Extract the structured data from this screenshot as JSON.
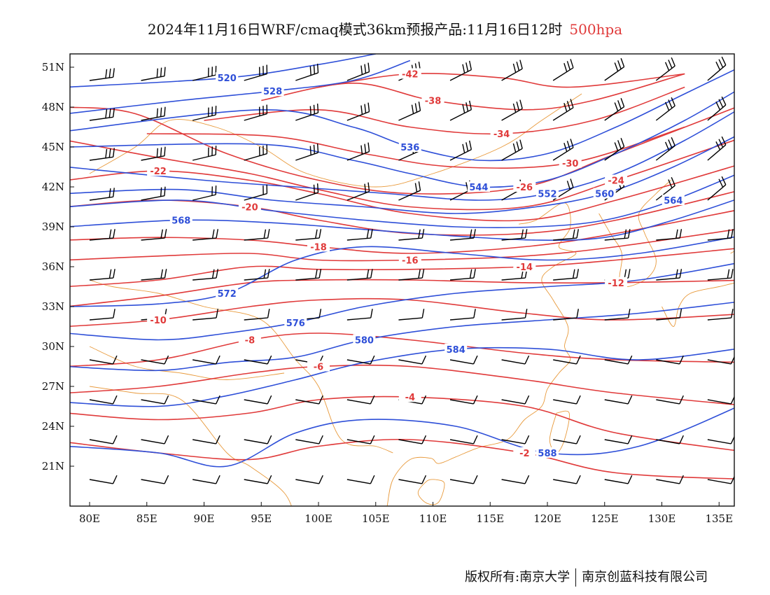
{
  "title": {
    "main": "2024年11月16日WRF/cmaq模式36km预报产品:11月16日12时",
    "level": "500hpa",
    "level_color": "#e03a3a"
  },
  "footer": {
    "owner": "版权所有:南京大学",
    "company": "南京创蓝科技有限公司"
  },
  "colors": {
    "height_contour": "#2e4fd8",
    "temp_contour": "#e03a3a",
    "coastline": "#e89a3c",
    "wind_barb": "#000000"
  },
  "axes": {
    "lat_labels": [
      "51N",
      "48N",
      "45N",
      "42N",
      "39N",
      "36N",
      "33N",
      "30N",
      "27N",
      "24N",
      "21N"
    ],
    "lon_labels": [
      "80E",
      "85E",
      "90E",
      "95E",
      "100E",
      "105E",
      "110E",
      "115E",
      "120E",
      "125E",
      "130E",
      "135E"
    ]
  },
  "contours": {
    "height": [
      {
        "label": "520",
        "lat": [
          49.5,
          50.2,
          51.2,
          52.0
        ],
        "lon": [
          78,
          92,
          100,
          105
        ]
      },
      {
        "label": "528",
        "lat": [
          47.5,
          48.5,
          49.2,
          50.0,
          51.5
        ],
        "lon": [
          78,
          88,
          96,
          103,
          108
        ]
      },
      {
        "label": "536",
        "lat": [
          46.2,
          47.8,
          46.5,
          45.0,
          44.0,
          44.5,
          46.5,
          49.0,
          51.5
        ],
        "lon": [
          78,
          95,
          103,
          108,
          114,
          120,
          126,
          132,
          138
        ]
      },
      {
        "label": "544",
        "lat": [
          45.0,
          45.2,
          44.0,
          43.0,
          42.0,
          42.5,
          44.5,
          47.0,
          50.0
        ],
        "lon": [
          78,
          95,
          103,
          108,
          114,
          120,
          126,
          132,
          138
        ]
      },
      {
        "label": "552",
        "lat": [
          43.5,
          42.5,
          42.0,
          41.5,
          41.0,
          41.5,
          43.0,
          45.5,
          48.5
        ],
        "lon": [
          78,
          90,
          98,
          106,
          114,
          120,
          126,
          132,
          138
        ]
      },
      {
        "label": "560",
        "lat": [
          41.5,
          41.8,
          41.0,
          40.5,
          40.0,
          40.5,
          41.5,
          43.5,
          46.5
        ],
        "lon": [
          78,
          88,
          96,
          104,
          112,
          119,
          125,
          131,
          138
        ]
      },
      {
        "label": "564",
        "lat": [
          40.5,
          41.0,
          40.2,
          39.5,
          39.0,
          39.0,
          39.5,
          41.0,
          43.5
        ],
        "lon": [
          78,
          88,
          96,
          104,
          112,
          119,
          125,
          131,
          138
        ]
      },
      {
        "label": "568",
        "lat": [
          39.0,
          39.5,
          39.3,
          38.8,
          38.3,
          38.0,
          38.2,
          39.5,
          41.5
        ],
        "lon": [
          78,
          88,
          96,
          104,
          112,
          119,
          125,
          131,
          138
        ]
      },
      {
        "label": "572",
        "lat": [
          33.0,
          33.2,
          34.0,
          36.5,
          37.5,
          37.0,
          36.5,
          37.0,
          38.5
        ],
        "lon": [
          78,
          86,
          92,
          98,
          104,
          112,
          120,
          128,
          138
        ]
      },
      {
        "label": "576",
        "lat": [
          31.0,
          30.5,
          31.0,
          31.8,
          33.0,
          34.0,
          34.5,
          35.0,
          36.5
        ],
        "lon": [
          78,
          86,
          92,
          98,
          104,
          112,
          120,
          128,
          138
        ]
      },
      {
        "label": "580",
        "lat": [
          28.5,
          28.2,
          28.8,
          29.2,
          30.5,
          31.5,
          32.0,
          32.5,
          33.5
        ],
        "lon": [
          78,
          86,
          92,
          98,
          104,
          112,
          120,
          128,
          138
        ]
      },
      {
        "label": "584",
        "lat": [
          25.8,
          25.5,
          26.3,
          27.5,
          28.8,
          29.8,
          29.8,
          29.0,
          30.0
        ],
        "lon": [
          78,
          86,
          92,
          98,
          104,
          112,
          120,
          128,
          138
        ]
      },
      {
        "label": "588",
        "lat": [
          22.5,
          22.0,
          21.0,
          23.5,
          24.5,
          24.0,
          22.0,
          22.5,
          26.0
        ],
        "lon": [
          78,
          86,
          92,
          98,
          104,
          112,
          120,
          128,
          138
        ]
      }
    ],
    "temp": [
      {
        "label": "-42",
        "lat": [
          49.5,
          50.5,
          50.2,
          49.5,
          50.5
        ],
        "lon": [
          100,
          108,
          116,
          122,
          132
        ]
      },
      {
        "label": "-38",
        "lat": [
          48.5,
          49.8,
          48.5,
          47.8,
          48.5,
          50.5
        ],
        "lon": [
          95,
          103,
          110,
          118,
          124,
          132
        ]
      },
      {
        "label": "-34",
        "lat": [
          47.0,
          47.8,
          46.5,
          46.0,
          47.0,
          49.5
        ],
        "lon": [
          90,
          100,
          108,
          116,
          124,
          132
        ]
      },
      {
        "label": "-30",
        "lat": [
          46.0,
          45.8,
          44.5,
          43.5,
          43.8,
          46.5
        ],
        "lon": [
          85,
          96,
          104,
          112,
          122,
          132
        ]
      },
      {
        "label": "-26",
        "lat": [
          48.0,
          47.5,
          44.5,
          42.5,
          41.5,
          42.0,
          44.5,
          48.5
        ],
        "lon": [
          78,
          84,
          92,
          100,
          108,
          118,
          126,
          138
        ]
      },
      {
        "label": "-24",
        "lat": [
          45.5,
          44.2,
          43.0,
          41.8,
          40.5,
          40.5,
          42.5,
          46.0
        ],
        "lon": [
          78,
          86,
          94,
          100,
          108,
          118,
          126,
          138
        ]
      },
      {
        "label": "-22",
        "lat": [
          42.5,
          43.2,
          42.5,
          41.5,
          40.0,
          39.5,
          41.0,
          44.0
        ],
        "lon": [
          78,
          86,
          94,
          100,
          108,
          118,
          126,
          138
        ]
      },
      {
        "label": "-20",
        "lat": [
          40.5,
          41.0,
          40.5,
          39.5,
          38.5,
          38.5,
          39.5,
          42.0
        ],
        "lon": [
          78,
          86,
          94,
          100,
          108,
          118,
          126,
          138
        ]
      },
      {
        "label": "-18",
        "lat": [
          38.0,
          38.2,
          38.0,
          37.5,
          37.0,
          37.5,
          38.5,
          40.5
        ],
        "lon": [
          78,
          86,
          94,
          100,
          108,
          118,
          126,
          138
        ]
      },
      {
        "label": "-16",
        "lat": [
          36.5,
          36.8,
          37.0,
          36.5,
          36.5,
          36.8,
          37.5,
          39.0
        ],
        "lon": [
          78,
          86,
          94,
          100,
          108,
          118,
          126,
          138
        ]
      },
      {
        "label": "-14",
        "lat": [
          34.5,
          35.0,
          36.0,
          35.8,
          35.8,
          36.0,
          36.5,
          37.5
        ],
        "lon": [
          78,
          86,
          94,
          100,
          108,
          118,
          126,
          138
        ]
      },
      {
        "label": "-12",
        "lat": [
          33.0,
          33.8,
          34.8,
          35.0,
          35.0,
          34.8,
          34.8,
          35.0
        ],
        "lon": [
          78,
          86,
          94,
          100,
          108,
          118,
          126,
          138
        ]
      },
      {
        "label": "-10",
        "lat": [
          31.5,
          32.0,
          33.0,
          33.5,
          33.5,
          32.5,
          32.0,
          32.5
        ],
        "lon": [
          78,
          86,
          94,
          100,
          108,
          118,
          126,
          138
        ]
      },
      {
        "label": "-8",
        "lat": [
          28.5,
          29.0,
          30.5,
          31.0,
          30.5,
          29.5,
          29.0,
          28.8
        ],
        "lon": [
          78,
          86,
          94,
          100,
          108,
          118,
          126,
          138
        ]
      },
      {
        "label": "-6",
        "lat": [
          26.5,
          27.0,
          28.0,
          28.5,
          28.5,
          27.5,
          26.5,
          25.5
        ],
        "lon": [
          78,
          86,
          94,
          100,
          108,
          118,
          126,
          138
        ]
      },
      {
        "label": "-4",
        "lat": [
          25.0,
          24.5,
          25.0,
          26.0,
          26.2,
          25.5,
          23.5,
          22.0
        ],
        "lon": [
          78,
          86,
          94,
          100,
          108,
          118,
          126,
          138
        ]
      },
      {
        "label": "-2",
        "lat": [
          22.8,
          22.0,
          21.5,
          22.5,
          23.0,
          22.0,
          20.5,
          20.0
        ],
        "lon": [
          78,
          86,
          94,
          100,
          108,
          118,
          126,
          138
        ]
      }
    ]
  },
  "wind_barbs": {
    "lat_start": 50,
    "lat_step": 3,
    "lat_count": 11,
    "lon_start": 80,
    "lon_step": 4.5,
    "lon_count": 13
  }
}
